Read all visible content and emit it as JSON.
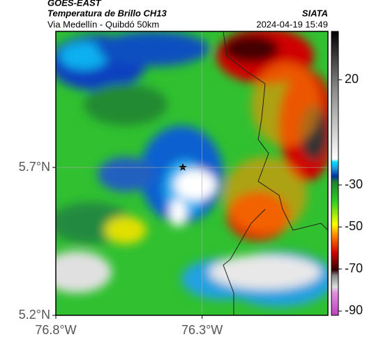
{
  "header": {
    "source": "GOES-EAST",
    "product": "Temperatura de Brillo CH13",
    "region": "Via Medellín - Quibdó 50km",
    "org": "SIATA",
    "timestamp": "2024-04-19 15:49"
  },
  "map": {
    "xlim": [
      -76.8,
      -75.87
    ],
    "ylim": [
      5.2,
      6.16
    ],
    "xticks": [
      {
        "value": -76.8,
        "label": "76.8°W"
      },
      {
        "value": -76.3,
        "label": "76.3°W"
      }
    ],
    "yticks": [
      {
        "value": 5.7,
        "label": "5.7°N"
      },
      {
        "value": 5.2,
        "label": "5.2°N"
      }
    ],
    "grid": true
  },
  "colorbar": {
    "lim": [
      -92,
      43
    ],
    "ticks": [
      20,
      -30,
      -50,
      -70,
      -90
    ]
  }
}
